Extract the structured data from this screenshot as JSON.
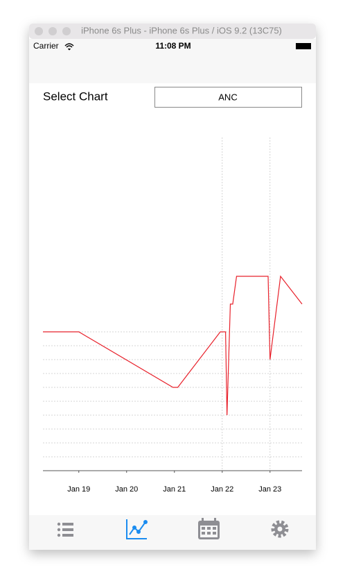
{
  "window": {
    "title": "iPhone 6s Plus - iPhone 6s Plus / iOS 9.2 (13C75)"
  },
  "status_bar": {
    "carrier": "Carrier",
    "time": "11:08 PM"
  },
  "picker": {
    "label": "Select Chart",
    "value": "ANC"
  },
  "chart_data": {
    "type": "line",
    "series": [
      {
        "color": "#e8202a",
        "x": [
          18.25,
          19,
          20.97,
          21.07,
          21.96,
          22.07,
          22.1,
          22.17,
          22.22,
          22.3,
          22.96,
          23.0,
          23.22,
          23.67
        ],
        "values": [
          10,
          10,
          6,
          6,
          10,
          10,
          4,
          12,
          12,
          14,
          14,
          8,
          14,
          12
        ]
      }
    ],
    "xlim": [
      18.25,
      23.67
    ],
    "xticks": [
      {
        "value": 19,
        "label": "Jan 19"
      },
      {
        "value": 20,
        "label": "Jan 20"
      },
      {
        "value": 21,
        "label": "Jan 21"
      },
      {
        "value": 22,
        "label": "Jan 22"
      },
      {
        "value": 23,
        "label": "Jan 23"
      }
    ],
    "ylim": [
      0,
      24
    ],
    "yticks": [
      1,
      2,
      3,
      4,
      5,
      6,
      7,
      8,
      9,
      10
    ],
    "vertical_grid": [
      22,
      23
    ],
    "grid": true
  }
}
